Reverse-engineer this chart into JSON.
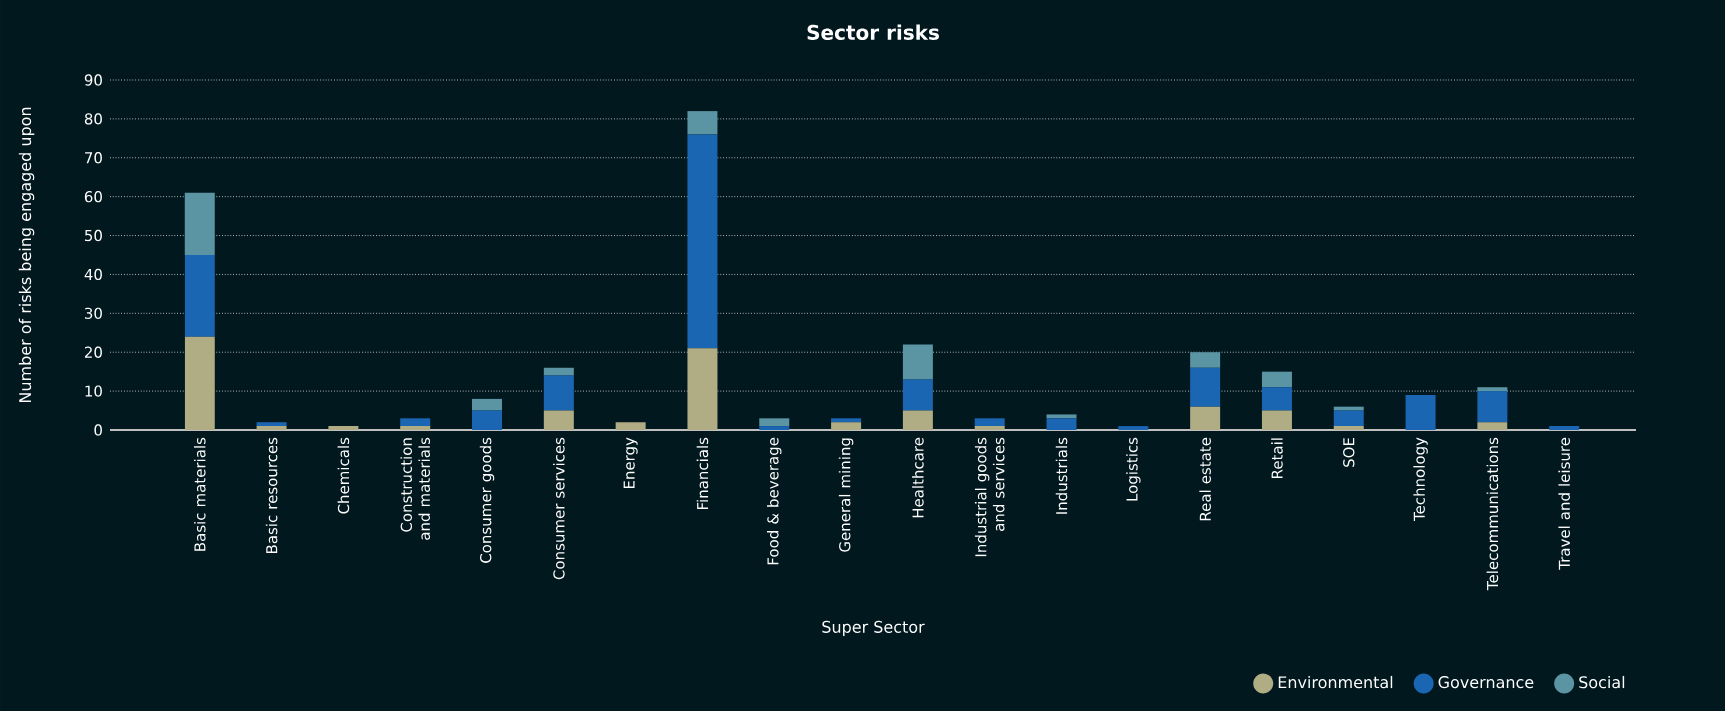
{
  "chart_data": {
    "type": "bar",
    "title": "Sector risks",
    "xlabel": "Super Sector",
    "ylabel": "Number of risks being engaged upon",
    "categories": [
      "Basic materials",
      "Basic resources",
      "Chemicals",
      "Construction and materials",
      "Consumer goods",
      "Consumer services",
      "Energy",
      "Financials",
      "Food & beverage",
      "General mining",
      "Healthcare",
      "Industrial goods and services",
      "Industrials",
      "Logistics",
      "Real estate",
      "Retail",
      "SOE",
      "Technology",
      "Telecommunications",
      "Travel and leisure"
    ],
    "series": [
      {
        "name": "Environmental",
        "color": "#b0ad84",
        "values": [
          24,
          1,
          1,
          1,
          0,
          5,
          2,
          21,
          0,
          2,
          5,
          1,
          0,
          0,
          6,
          5,
          1,
          0,
          2,
          0
        ]
      },
      {
        "name": "Governance",
        "color": "#1a66b3",
        "values": [
          21,
          1,
          0,
          2,
          5,
          9,
          0,
          55,
          1,
          1,
          8,
          2,
          3,
          1,
          10,
          6,
          4,
          9,
          8,
          1
        ]
      },
      {
        "name": "Social",
        "color": "#5b94a2",
        "values": [
          16,
          0,
          0,
          0,
          3,
          2,
          0,
          6,
          2,
          0,
          9,
          0,
          1,
          0,
          4,
          4,
          1,
          0,
          1,
          0
        ]
      }
    ],
    "stacked": true,
    "ylim": [
      0,
      90
    ],
    "yticks": [
      0,
      10,
      20,
      30,
      40,
      50,
      60,
      70,
      80,
      90
    ],
    "grid": "y",
    "legend": "bottom right"
  }
}
